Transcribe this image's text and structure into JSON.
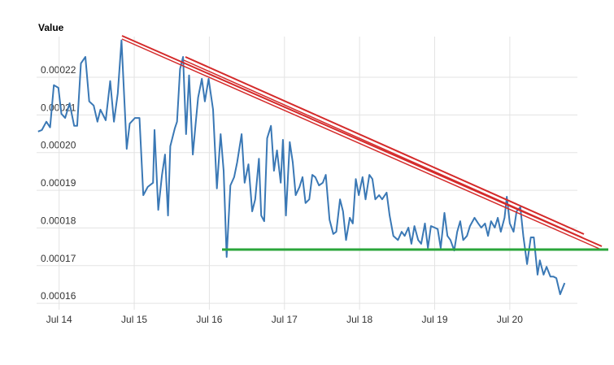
{
  "chart_data": {
    "type": "line",
    "title": "Value",
    "color": "#3a78b5",
    "grid": true,
    "xlim": [
      -0.3,
      6.9
    ],
    "xticks": [
      {
        "value": 0,
        "label": "Jul 14"
      },
      {
        "value": 1,
        "label": "Jul 15"
      },
      {
        "value": 2,
        "label": "Jul 16"
      },
      {
        "value": 3,
        "label": "Jul 17"
      },
      {
        "value": 4,
        "label": "Jul 18"
      },
      {
        "value": 5,
        "label": "Jul 19"
      },
      {
        "value": 6,
        "label": "Jul 20"
      }
    ],
    "ylim": [
      0.0001583,
      0.0002308
    ],
    "yticks": [
      {
        "value": 0.00016,
        "label": "0.00016"
      },
      {
        "value": 0.00017,
        "label": "0.00017"
      },
      {
        "value": 0.00018,
        "label": "0.00018"
      },
      {
        "value": 0.00019,
        "label": "0.00019"
      },
      {
        "value": 0.0002,
        "label": "0.00020"
      },
      {
        "value": 0.00021,
        "label": "0.00021"
      },
      {
        "value": 0.00022,
        "label": "0.00022"
      }
    ],
    "x": [
      -0.28,
      -0.23,
      -0.17,
      -0.12,
      -0.07,
      -0.01,
      0.03,
      0.08,
      0.14,
      0.2,
      0.24,
      0.29,
      0.35,
      0.4,
      0.46,
      0.51,
      0.55,
      0.62,
      0.68,
      0.73,
      0.78,
      0.83,
      0.9,
      0.94,
      1.01,
      1.07,
      1.12,
      1.18,
      1.25,
      1.27,
      1.32,
      1.37,
      1.41,
      1.45,
      1.48,
      1.54,
      1.57,
      1.61,
      1.65,
      1.69,
      1.73,
      1.78,
      1.82,
      1.85,
      1.9,
      1.94,
      1.99,
      2.05,
      2.1,
      2.15,
      2.19,
      2.23,
      2.28,
      2.33,
      2.37,
      2.43,
      2.47,
      2.52,
      2.57,
      2.61,
      2.66,
      2.69,
      2.73,
      2.77,
      2.82,
      2.86,
      2.9,
      2.95,
      2.98,
      3.02,
      3.07,
      3.11,
      3.15,
      3.2,
      3.24,
      3.28,
      3.33,
      3.37,
      3.41,
      3.46,
      3.51,
      3.55,
      3.6,
      3.65,
      3.69,
      3.74,
      3.78,
      3.82,
      3.87,
      3.91,
      3.95,
      3.99,
      4.04,
      4.08,
      4.13,
      4.17,
      4.21,
      4.26,
      4.3,
      4.36,
      4.4,
      4.45,
      4.51,
      4.56,
      4.6,
      4.65,
      4.69,
      4.73,
      4.78,
      4.82,
      4.87,
      4.91,
      4.95,
      5.0,
      5.04,
      5.08,
      5.13,
      5.17,
      5.21,
      5.26,
      5.3,
      5.34,
      5.38,
      5.43,
      5.47,
      5.53,
      5.58,
      5.62,
      5.67,
      5.71,
      5.75,
      5.8,
      5.84,
      5.88,
      5.93,
      5.96,
      6.0,
      6.05,
      6.09,
      6.14,
      6.18,
      6.23,
      6.28,
      6.32,
      6.37,
      6.4,
      6.45,
      6.49,
      6.54,
      6.58,
      6.62,
      6.67,
      6.73
    ],
    "values": [
      0.0002056,
      0.000206,
      0.0002082,
      0.0002067,
      0.0002179,
      0.0002172,
      0.0002103,
      0.0002092,
      0.0002131,
      0.0002071,
      0.0002071,
      0.0002237,
      0.0002254,
      0.0002136,
      0.0002125,
      0.0002082,
      0.0002114,
      0.0002086,
      0.000219,
      0.0002082,
      0.0002157,
      0.0002298,
      0.000201,
      0.0002077,
      0.0002092,
      0.0002092,
      0.0001887,
      0.0001909,
      0.000192,
      0.000206,
      0.0001848,
      0.0001941,
      0.0001995,
      0.0001833,
      0.0002017,
      0.0002064,
      0.0002082,
      0.0002222,
      0.0002254,
      0.0002049,
      0.0002205,
      0.0001995,
      0.0002082,
      0.0002146,
      0.0002196,
      0.0002136,
      0.0002196,
      0.0002114,
      0.0001905,
      0.0002049,
      0.0001952,
      0.0001723,
      0.0001913,
      0.0001935,
      0.0001974,
      0.0002049,
      0.000192,
      0.0001969,
      0.0001844,
      0.0001876,
      0.0001984,
      0.0001833,
      0.0001818,
      0.0002038,
      0.0002071,
      0.0001952,
      0.0002006,
      0.000192,
      0.0002034,
      0.0001833,
      0.0002028,
      0.0001974,
      0.0001887,
      0.0001909,
      0.0001935,
      0.0001866,
      0.0001876,
      0.0001941,
      0.0001935,
      0.0001913,
      0.000192,
      0.0001941,
      0.0001822,
      0.0001784,
      0.000179,
      0.0001876,
      0.0001844,
      0.0001768,
      0.0001827,
      0.0001812,
      0.000193,
      0.0001887,
      0.0001935,
      0.0001876,
      0.0001941,
      0.000193,
      0.0001876,
      0.0001887,
      0.0001876,
      0.0001894,
      0.0001833,
      0.0001779,
      0.0001768,
      0.000179,
      0.0001779,
      0.0001801,
      0.0001758,
      0.0001805,
      0.0001768,
      0.0001758,
      0.0001812,
      0.0001747,
      0.0001805,
      0.0001801,
      0.0001797,
      0.0001747,
      0.000184,
      0.0001779,
      0.0001768,
      0.000174,
      0.000179,
      0.0001818,
      0.0001768,
      0.0001779,
      0.0001805,
      0.0001827,
      0.0001812,
      0.0001801,
      0.0001812,
      0.0001779,
      0.0001818,
      0.0001801,
      0.0001827,
      0.000179,
      0.0001827,
      0.0001883,
      0.0001812,
      0.000179,
      0.0001844,
      0.0001855,
      0.0001779,
      0.0001704,
      0.0001775,
      0.0001775,
      0.0001676,
      0.0001714,
      0.0001676,
      0.0001697,
      0.0001671,
      0.0001671,
      0.0001667,
      0.0001624,
      0.0001654
    ]
  }
}
